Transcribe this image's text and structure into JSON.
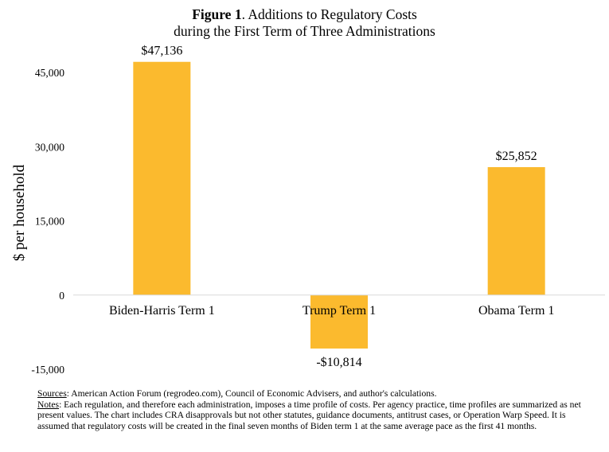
{
  "title": {
    "figure_label": "Figure 1",
    "line1_rest": ".  Additions to Regulatory Costs",
    "line2": "during the First Term of Three Administrations"
  },
  "chart_data": {
    "type": "bar",
    "title": "Figure 1.  Additions to Regulatory Costs during the First Term of Three Administrations",
    "categories": [
      "Biden-Harris Term 1",
      "Trump Term 1",
      "Obama Term 1"
    ],
    "values": [
      47136,
      -10814,
      25852
    ],
    "value_labels": [
      "$47,136",
      "-$10,814",
      "$25,852"
    ],
    "ylabel": "$ per household",
    "xlabel": "",
    "ylim": [
      -15000,
      45000
    ],
    "yticks": [
      -15000,
      0,
      15000,
      30000,
      45000
    ],
    "ytick_labels": [
      "-15,000",
      "0",
      "15,000",
      "30,000",
      "45,000"
    ],
    "bar_color": "#FBBA2E",
    "axis_color": "#D9D9D9",
    "grid": false,
    "legend": "none"
  },
  "notes": {
    "sources_label": "Sources",
    "sources_text": ": American Action Forum (regrodeo.com), Council of Economic Advisers, and author's calculations.",
    "notes_label": "Notes",
    "notes_text": ": Each regulation, and therefore each administration, imposes a time profile of costs.  Per agency practice, time profiles are summarized as net present values.  The chart includes CRA disapprovals but not other statutes, guidance documents, antitrust cases, or Operation Warp Speed.  It is assumed that regulatory costs will be created in the final seven months of Biden term 1 at the same average pace as the first 41 months."
  }
}
